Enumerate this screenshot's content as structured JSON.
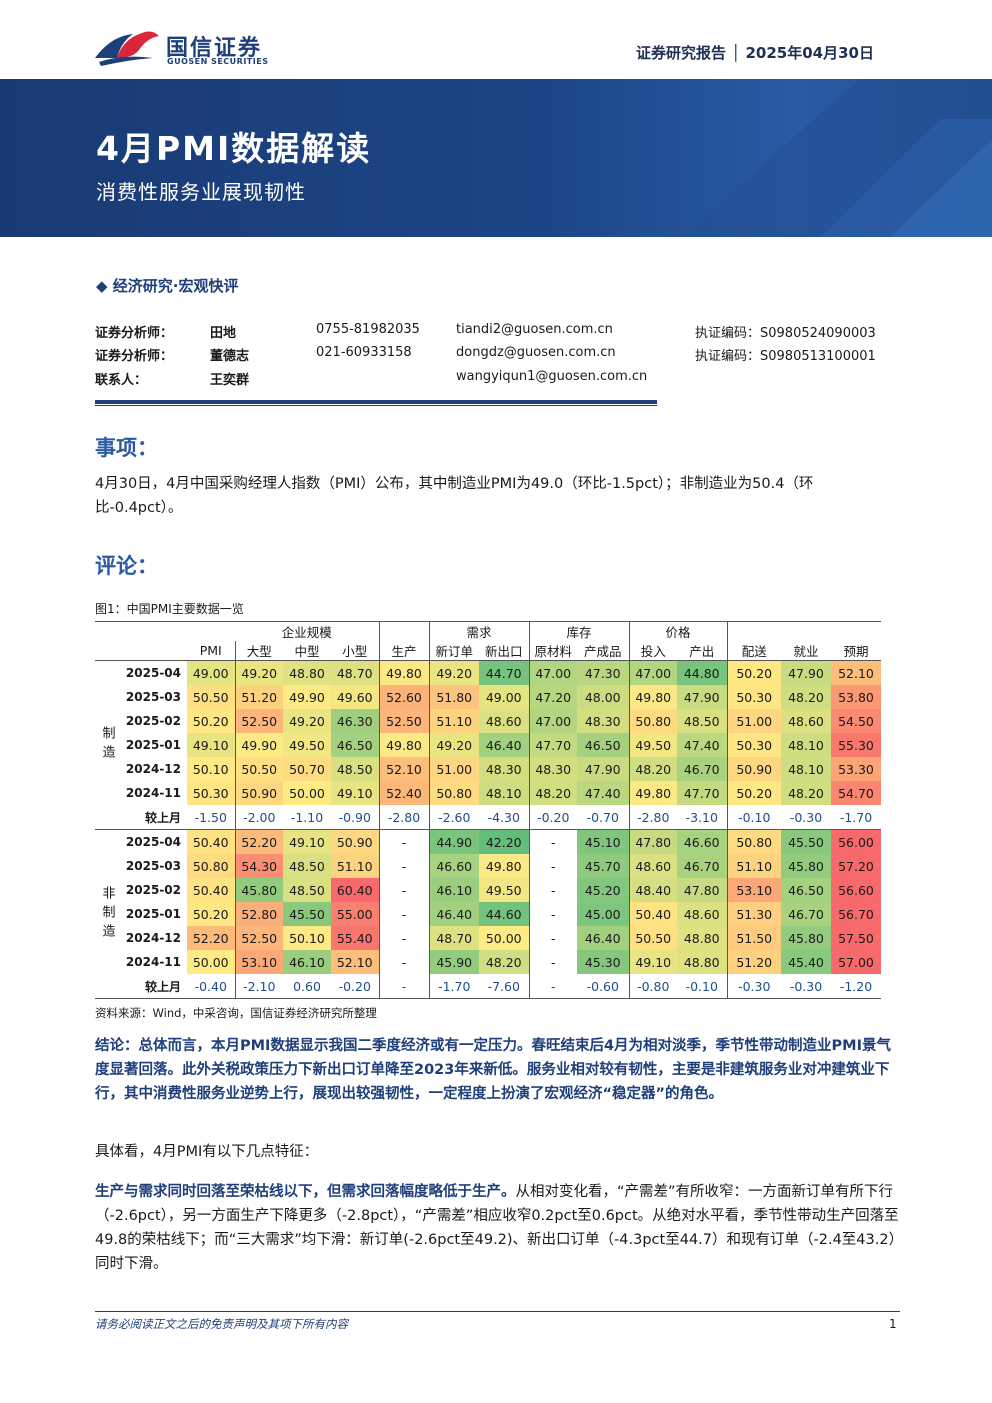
{
  "header": {
    "logo_cn": "国信证券",
    "logo_en": "GUOSEN SECURITIES",
    "report_type": "证券研究报告 │ 2025年04月30日"
  },
  "banner": {
    "title": "4月PMI数据解读",
    "subtitle": "消费性服务业展现韧性"
  },
  "category": "◆ 经济研究·宏观快评",
  "analysts": [
    {
      "role": "证券分析师：",
      "name": "田地",
      "phone": "0755-81982035",
      "email": "tiandi2@guosen.com.cn",
      "cert": "执证编码：S0980524090003"
    },
    {
      "role": "证券分析师：",
      "name": "董德志",
      "phone": "021-60933158",
      "email": "dongdz@guosen.com.cn",
      "cert": "执证编码：S0980513100001"
    },
    {
      "role": "联系人：",
      "name": "王奕群",
      "phone": "",
      "email": "wangyiqun1@guosen.com.cn",
      "cert": ""
    }
  ],
  "section_event": "事项：",
  "event_text": "4月30日，4月中国采购经理人指数（PMI）公布，其中制造业PMI为49.0（环比-1.5pct）；非制造业为50.4（环比-0.4pct）。",
  "section_comment": "评论：",
  "figure_title": "图1：中国PMI主要数据一览",
  "table": {
    "group_headers": {
      "scale": "企业规模",
      "demand": "需求",
      "inventory": "库存",
      "price": "价格"
    },
    "columns": [
      "PMI",
      "大型",
      "中型",
      "小型",
      "生产",
      "新订单",
      "新出口",
      "原材料",
      "产成品",
      "投入",
      "产出",
      "配送",
      "就业",
      "预期"
    ],
    "mfg_label": "制造",
    "nonmfg_label": "非制造",
    "mfg_rows": [
      {
        "label": "2025-04",
        "values": [
          "49.00",
          "49.20",
          "48.80",
          "48.70",
          "49.80",
          "49.20",
          "44.70",
          "47.00",
          "47.30",
          "47.00",
          "44.80",
          "50.20",
          "47.90",
          "52.10"
        ]
      },
      {
        "label": "2025-03",
        "values": [
          "50.50",
          "51.20",
          "49.90",
          "49.60",
          "52.60",
          "51.80",
          "49.00",
          "47.20",
          "48.00",
          "49.80",
          "47.90",
          "50.30",
          "48.20",
          "53.80"
        ]
      },
      {
        "label": "2025-02",
        "values": [
          "50.20",
          "52.50",
          "49.20",
          "46.30",
          "52.50",
          "51.10",
          "48.60",
          "47.00",
          "48.30",
          "50.80",
          "48.50",
          "51.00",
          "48.60",
          "54.50"
        ]
      },
      {
        "label": "2025-01",
        "values": [
          "49.10",
          "49.90",
          "49.50",
          "46.50",
          "49.80",
          "49.20",
          "46.40",
          "47.70",
          "46.50",
          "49.50",
          "47.40",
          "50.30",
          "48.10",
          "55.30"
        ]
      },
      {
        "label": "2024-12",
        "values": [
          "50.10",
          "50.50",
          "50.70",
          "48.50",
          "52.10",
          "51.00",
          "48.30",
          "48.30",
          "47.90",
          "48.20",
          "46.70",
          "50.90",
          "48.10",
          "53.30"
        ]
      },
      {
        "label": "2024-11",
        "values": [
          "50.30",
          "50.90",
          "50.00",
          "49.10",
          "52.40",
          "50.80",
          "48.10",
          "48.20",
          "47.40",
          "49.80",
          "47.70",
          "50.20",
          "48.20",
          "54.70"
        ]
      }
    ],
    "mfg_diff": {
      "label": "较上月",
      "values": [
        "-1.50",
        "-2.00",
        "-1.10",
        "-0.90",
        "-2.80",
        "-2.60",
        "-4.30",
        "-0.20",
        "-0.70",
        "-2.80",
        "-3.10",
        "-0.10",
        "-0.30",
        "-1.70"
      ]
    },
    "nonmfg_rows": [
      {
        "label": "2025-04",
        "values": [
          "50.40",
          "52.20",
          "49.10",
          "50.90",
          "-",
          "44.90",
          "42.20",
          "-",
          "45.10",
          "47.80",
          "46.60",
          "50.80",
          "45.50",
          "56.00"
        ]
      },
      {
        "label": "2025-03",
        "values": [
          "50.80",
          "54.30",
          "48.50",
          "51.10",
          "-",
          "46.60",
          "49.80",
          "-",
          "45.70",
          "48.60",
          "46.70",
          "51.10",
          "45.80",
          "57.20"
        ]
      },
      {
        "label": "2025-02",
        "values": [
          "50.40",
          "45.80",
          "48.50",
          "60.40",
          "-",
          "46.10",
          "49.50",
          "-",
          "45.20",
          "48.40",
          "47.80",
          "53.10",
          "46.50",
          "56.60"
        ]
      },
      {
        "label": "2025-01",
        "values": [
          "50.20",
          "52.80",
          "45.50",
          "55.00",
          "-",
          "46.40",
          "44.60",
          "-",
          "45.00",
          "50.40",
          "48.60",
          "51.30",
          "46.70",
          "56.70"
        ]
      },
      {
        "label": "2024-12",
        "values": [
          "52.20",
          "52.50",
          "50.10",
          "55.40",
          "-",
          "48.70",
          "50.00",
          "-",
          "46.40",
          "50.50",
          "48.80",
          "51.50",
          "45.80",
          "57.50"
        ]
      },
      {
        "label": "2024-11",
        "values": [
          "50.00",
          "53.10",
          "46.10",
          "52.10",
          "-",
          "45.90",
          "48.20",
          "-",
          "45.30",
          "49.10",
          "48.80",
          "51.20",
          "45.40",
          "57.00"
        ]
      }
    ],
    "nonmfg_diff": {
      "label": "较上月",
      "values": [
        "-0.40",
        "-2.10",
        "0.60",
        "-0.20",
        "-",
        "-1.70",
        "-7.60",
        "-",
        "-0.60",
        "-0.80",
        "-0.10",
        "-0.30",
        "-0.30",
        "-1.20"
      ]
    }
  },
  "source": "资料来源：Wind，中采咨询，国信证券经济研究所整理",
  "conclusion": "结论：总体而言，本月PMI数据显示我国二季度经济或有一定压力。春旺结束后4月为相对淡季，季节性带动制造业PMI景气度显著回落。此外关税政策压力下新出口订单降至2023年来新低。服务业相对较有韧性，主要是非建筑服务业对冲建筑业下行，其中消费性服务业逆势上行，展现出较强韧性，一定程度上扮演了宏观经济“稳定器”的角色。",
  "features_intro": "具体看，4月PMI有以下几点特征：",
  "feature1_bold": "生产与需求同时回落至荣枯线以下，但需求回落幅度略低于生产。",
  "feature1_text": "从相对变化看，“产需差”有所收窄：一方面新订单有所下行（-2.6pct），另一方面生产下降更多（-2.8pct），“产需差”相应收窄0.2pct至0.6pct。从绝对水平看，季节性带动生产回落至49.8的荣枯线下；而“三大需求”均下滑：新订单(-2.6pct至49.2)、新出口订单（-4.3pct至44.7）和现有订单（-2.4至43.2）同时下滑。",
  "footer": "请务必阅读正文之后的免责声明及其项下所有内容",
  "page_number": "1",
  "colors": {
    "brand": "#1f3f7a",
    "heading": "#2c5aa0",
    "green": "#63be7b",
    "yellow": "#ffeb84",
    "red": "#f8696b"
  }
}
